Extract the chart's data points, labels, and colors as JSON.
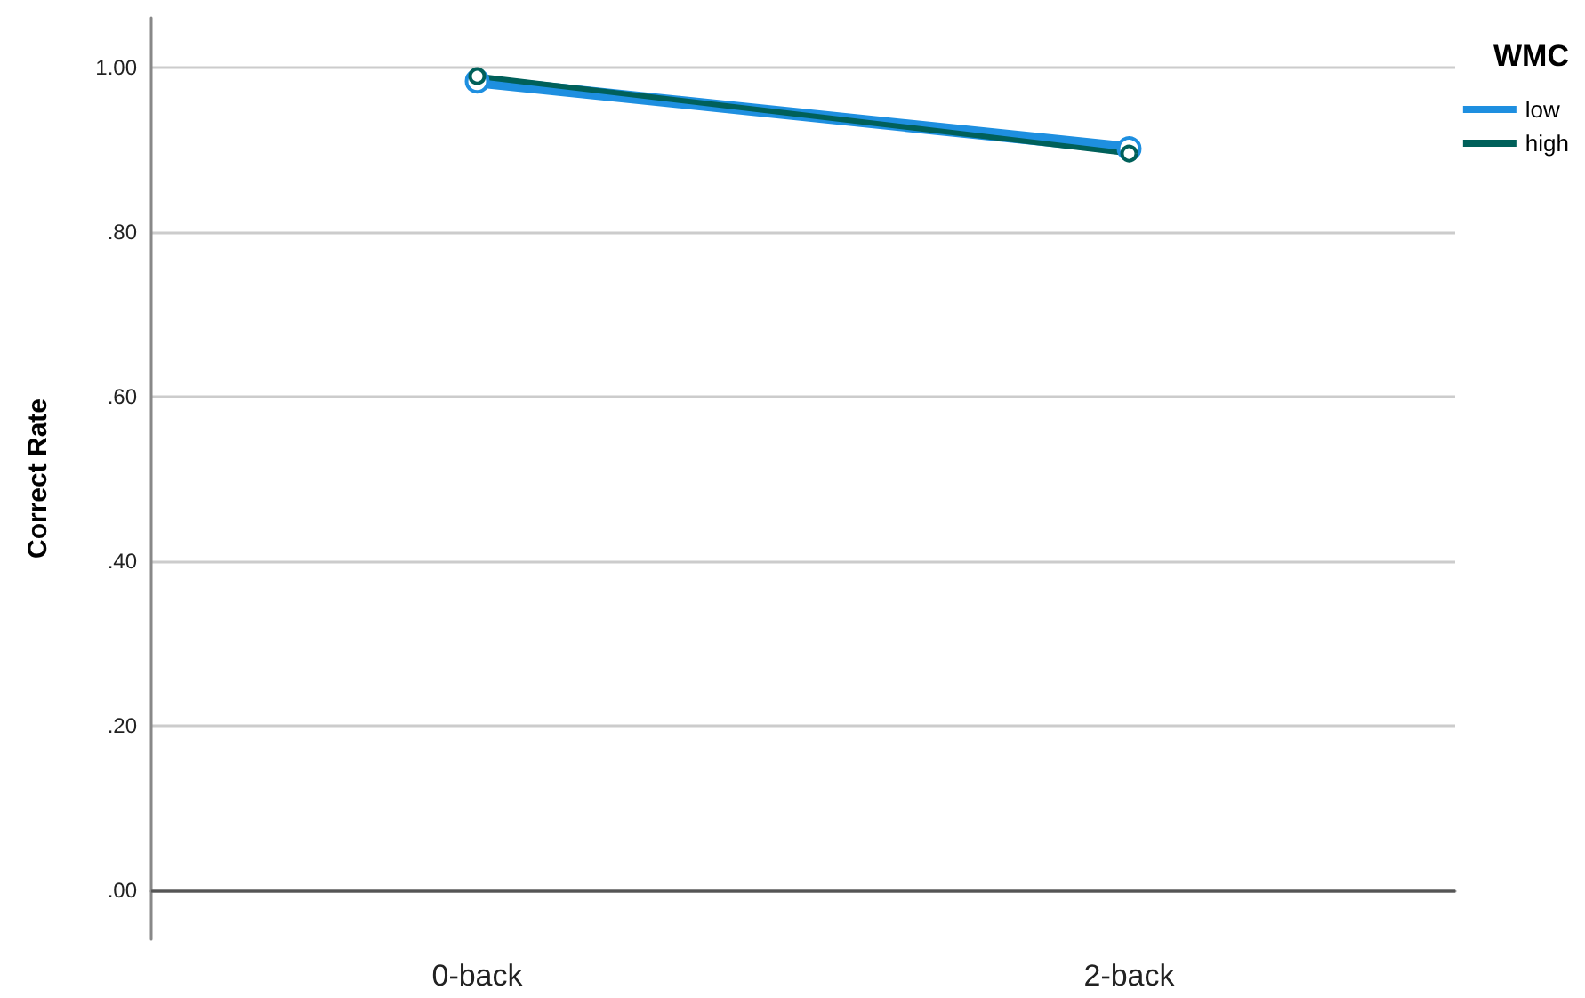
{
  "chart_data": {
    "type": "line",
    "ylabel": "Correct Rate",
    "legend_title": "WMC",
    "categories": [
      "0-back",
      "2-back"
    ],
    "series": [
      {
        "name": "low",
        "color": "#1e8fe0",
        "values": [
          0.983,
          0.901
        ]
      },
      {
        "name": "high",
        "color": "#00605a",
        "values": [
          0.989,
          0.895
        ]
      }
    ],
    "ylim": [
      -0.06,
      1.06
    ],
    "yticks": [
      {
        "value": 0,
        "label": ".00"
      },
      {
        "value": 0.2,
        "label": ".20"
      },
      {
        "value": 0.4,
        "label": ".40"
      },
      {
        "value": 0.6,
        "label": ".60"
      },
      {
        "value": 0.8,
        "label": ".80"
      },
      {
        "value": 1,
        "label": "1.00"
      }
    ],
    "ref_lines": [
      {
        "axis": "y",
        "value": 0,
        "label": null,
        "color": "#555555"
      }
    ],
    "grid": "y",
    "legend": "top right",
    "marker": "circle",
    "line_style": "solid"
  }
}
